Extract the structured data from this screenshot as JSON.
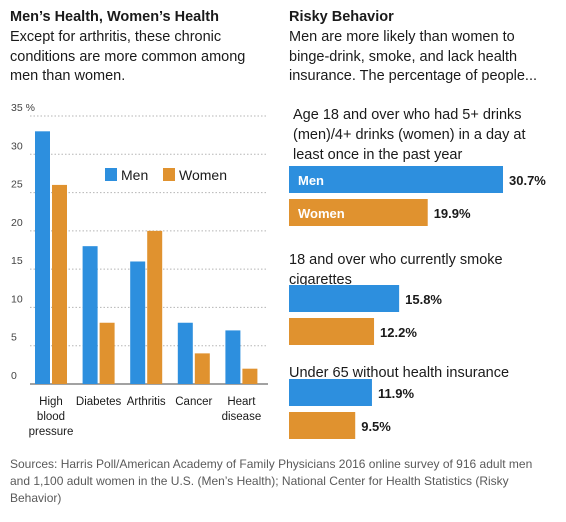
{
  "colors": {
    "men": "#2d8fde",
    "women": "#e0922f",
    "axis": "#444444",
    "grid": "#b5b5b5"
  },
  "left_panel": {
    "title": "Men’s Health, Women’s Health",
    "subtitle": "Except for arthritis, these chronic conditions are more common among men than women."
  },
  "right_panel": {
    "title": "Risky Behavior",
    "subtitle": "Men are more likely than women to binge-drink, smoke, and lack health insurance. The percentage of people..."
  },
  "footer": {
    "sources": "Sources: Harris Poll/American Academy of Family Physicians 2016 online survey of 916 adult men and 1,100 adult women in the U.S. (Men’s Health); National Center for Health Statistics (Risky Behavior)"
  },
  "chart_data": [
    {
      "type": "bar",
      "title": "Men’s Health, Women’s Health",
      "categories": [
        [
          "High",
          "blood",
          "pressure"
        ],
        [
          "Diabetes"
        ],
        [
          "Arthritis"
        ],
        [
          "Cancer"
        ],
        [
          "Heart",
          "disease"
        ]
      ],
      "series": [
        {
          "name": "Men",
          "values": [
            33,
            18,
            16,
            8,
            7
          ]
        },
        {
          "name": "Women",
          "values": [
            26,
            8,
            20,
            4,
            2
          ]
        }
      ],
      "ylim": [
        0,
        35
      ],
      "yticks": [
        0,
        5,
        10,
        15,
        20,
        25,
        30,
        35
      ],
      "ytick_labels": [
        "0",
        "5",
        "10",
        "15",
        "20",
        "25",
        "30",
        "35 %"
      ],
      "legend": "upper-right",
      "grid": "horizontal"
    },
    {
      "type": "bar",
      "orientation": "horizontal",
      "title": "Risky Behavior",
      "xlim": [
        0,
        30.7
      ],
      "groups": [
        {
          "label": "Age 18 and over who had 5+ drinks (men)/4+ drinks (women) in a day at least once in the past year",
          "men": 30.7,
          "women": 19.9,
          "men_label": "30.7%",
          "women_label": "19.9%",
          "men_inside": "Men",
          "women_inside": "Women"
        },
        {
          "label": "18 and over who currently smoke cigarettes",
          "men": 15.8,
          "women": 12.2,
          "men_label": "15.8%",
          "women_label": "12.2%"
        },
        {
          "label": "Under 65 without health insurance",
          "men": 11.9,
          "women": 9.5,
          "men_label": "11.9%",
          "women_label": "9.5%"
        }
      ]
    }
  ]
}
